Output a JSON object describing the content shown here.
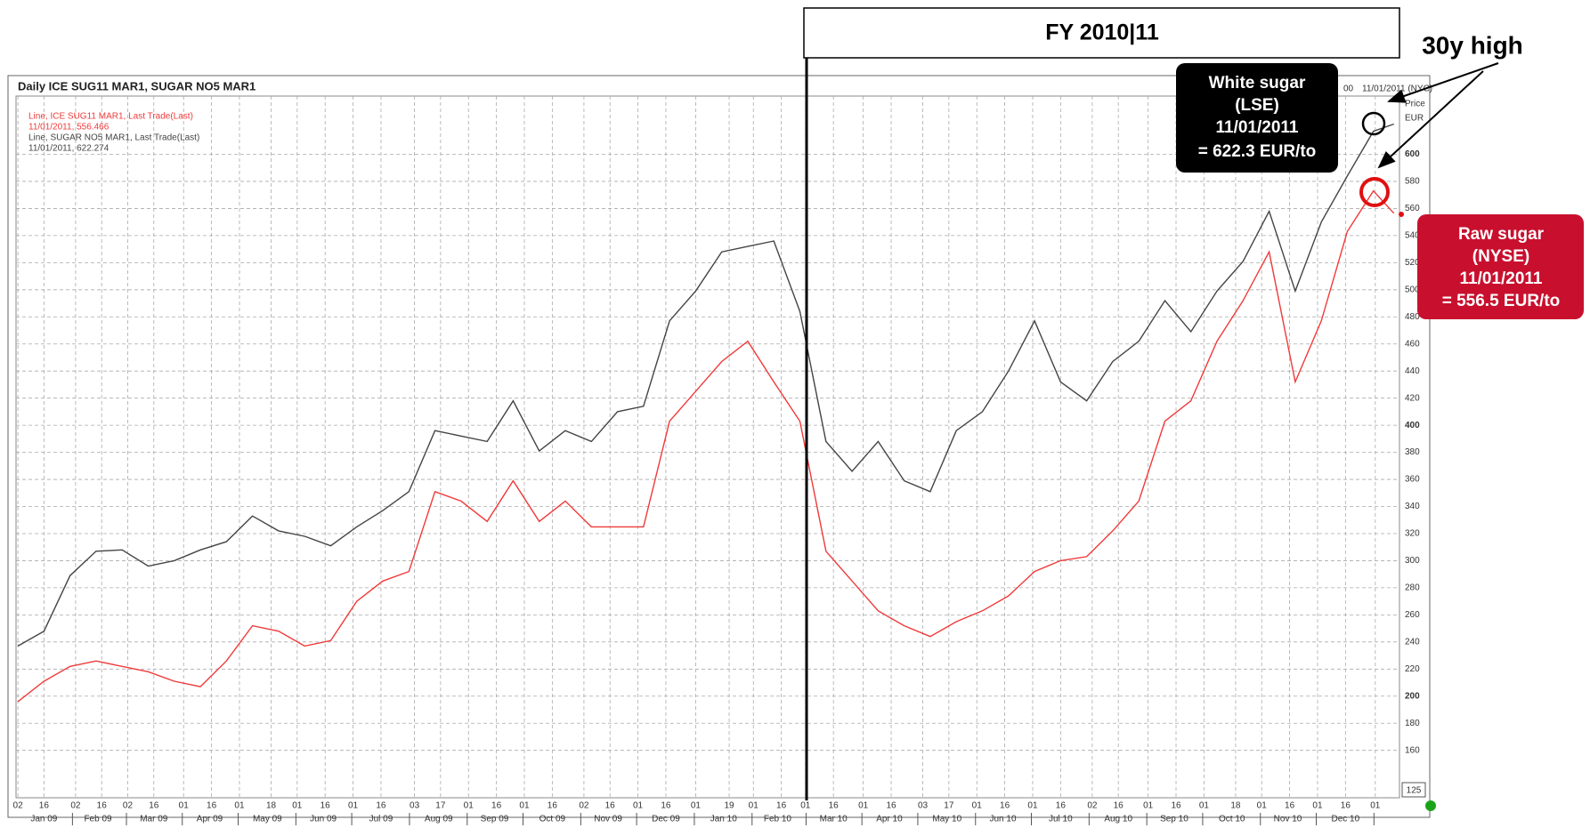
{
  "chart_data": {
    "type": "line",
    "title": "Daily ICE SUG11 MAR1, SUGAR NO5 MAR1",
    "corner_labels": [
      "00",
      "11/01/2011 (NYC)",
      "Price",
      "EUR"
    ],
    "current_label": "125",
    "fy_label": "FY 2010|11",
    "high_label": "30y high",
    "white_callout": [
      "White sugar",
      "(LSE)",
      "11/01/2011",
      "= 622.3 EUR/to"
    ],
    "raw_callout": [
      "Raw sugar",
      "(NYSE)",
      "11/01/2011",
      "= 556.5 EUR/to"
    ],
    "x": [
      "2009-01-02",
      "2009-01-16",
      "2009-01-30",
      "2009-02-13",
      "2009-02-27",
      "2009-03-13",
      "2009-03-27",
      "2009-04-10",
      "2009-04-24",
      "2009-05-08",
      "2009-05-22",
      "2009-06-05",
      "2009-06-19",
      "2009-07-03",
      "2009-07-17",
      "2009-07-31",
      "2009-08-14",
      "2009-08-28",
      "2009-09-11",
      "2009-09-25",
      "2009-10-09",
      "2009-10-23",
      "2009-11-06",
      "2009-11-20",
      "2009-12-04",
      "2009-12-18",
      "2010-01-01",
      "2010-01-15",
      "2010-01-29",
      "2010-02-12",
      "2010-02-26",
      "2010-03-12",
      "2010-03-26",
      "2010-04-09",
      "2010-04-23",
      "2010-05-07",
      "2010-05-21",
      "2010-06-04",
      "2010-06-18",
      "2010-07-02",
      "2010-07-16",
      "2010-07-30",
      "2010-08-13",
      "2010-08-27",
      "2010-09-10",
      "2010-09-24",
      "2010-10-08",
      "2010-10-22",
      "2010-11-05",
      "2010-11-19",
      "2010-12-03",
      "2010-12-17",
      "2010-12-31",
      "2011-01-11"
    ],
    "series": [
      {
        "name": "Line, ICE SUG11 MAR1, Last Trade(Last)",
        "last_label": "11/01/2011, 556.466",
        "color": "#f03a3a",
        "values": [
          196,
          211,
          222,
          226,
          222,
          218,
          211,
          207,
          226,
          252,
          248,
          237,
          241,
          270,
          285,
          292,
          351,
          344,
          329,
          359,
          329,
          344,
          325,
          325,
          325,
          403,
          425,
          447,
          462,
          432,
          403,
          307,
          285,
          263,
          252,
          244,
          255,
          263,
          274,
          292,
          300,
          303,
          322,
          344,
          403,
          418,
          462,
          492,
          528,
          432,
          477,
          543,
          573,
          556.5
        ]
      },
      {
        "name": "Line, SUGAR NO5 MAR1, Last Trade(Last)",
        "last_label": "11/01/2011, 622.274",
        "color": "#444444",
        "values": [
          237,
          248,
          289,
          307,
          308,
          296,
          300,
          308,
          314,
          333,
          322,
          318,
          311,
          325,
          337,
          351,
          396,
          392,
          388,
          418,
          381,
          396,
          388,
          410,
          414,
          477,
          499,
          528,
          532,
          536,
          484,
          388,
          366,
          388,
          359,
          351,
          396,
          410,
          440,
          477,
          432,
          418,
          447,
          462,
          492,
          469,
          499,
          521,
          558,
          499,
          550,
          584,
          617,
          622.3
        ]
      }
    ],
    "xlim": [
      "2009-01-01",
      "2011-01-14"
    ],
    "xticks": [
      {
        "value": "2009-01-02",
        "label": "02"
      },
      {
        "value": "2009-01-16",
        "label": "16"
      },
      {
        "value": "2009-02-02",
        "label": "02"
      },
      {
        "value": "2009-02-16",
        "label": "16"
      },
      {
        "value": "2009-03-02",
        "label": "02"
      },
      {
        "value": "2009-03-16",
        "label": "16"
      },
      {
        "value": "2009-04-01",
        "label": "01"
      },
      {
        "value": "2009-04-16",
        "label": "16"
      },
      {
        "value": "2009-05-01",
        "label": "01"
      },
      {
        "value": "2009-05-18",
        "label": "18"
      },
      {
        "value": "2009-06-01",
        "label": "01"
      },
      {
        "value": "2009-06-16",
        "label": "16"
      },
      {
        "value": "2009-07-01",
        "label": "01"
      },
      {
        "value": "2009-07-16",
        "label": "16"
      },
      {
        "value": "2009-08-03",
        "label": "03"
      },
      {
        "value": "2009-08-17",
        "label": "17"
      },
      {
        "value": "2009-09-01",
        "label": "01"
      },
      {
        "value": "2009-09-16",
        "label": "16"
      },
      {
        "value": "2009-10-01",
        "label": "01"
      },
      {
        "value": "2009-10-16",
        "label": "16"
      },
      {
        "value": "2009-11-02",
        "label": "02"
      },
      {
        "value": "2009-11-16",
        "label": "16"
      },
      {
        "value": "2009-12-01",
        "label": "01"
      },
      {
        "value": "2009-12-16",
        "label": "16"
      },
      {
        "value": "2010-01-01",
        "label": "01"
      },
      {
        "value": "2010-01-19",
        "label": "19"
      },
      {
        "value": "2010-02-01",
        "label": "01"
      },
      {
        "value": "2010-02-16",
        "label": "16"
      },
      {
        "value": "2010-03-01",
        "label": "01"
      },
      {
        "value": "2010-03-16",
        "label": "16"
      },
      {
        "value": "2010-04-01",
        "label": "01"
      },
      {
        "value": "2010-04-16",
        "label": "16"
      },
      {
        "value": "2010-05-03",
        "label": "03"
      },
      {
        "value": "2010-05-17",
        "label": "17"
      },
      {
        "value": "2010-06-01",
        "label": "01"
      },
      {
        "value": "2010-06-16",
        "label": "16"
      },
      {
        "value": "2010-07-01",
        "label": "01"
      },
      {
        "value": "2010-07-16",
        "label": "16"
      },
      {
        "value": "2010-08-02",
        "label": "02"
      },
      {
        "value": "2010-08-16",
        "label": "16"
      },
      {
        "value": "2010-09-01",
        "label": "01"
      },
      {
        "value": "2010-09-16",
        "label": "16"
      },
      {
        "value": "2010-10-01",
        "label": "01"
      },
      {
        "value": "2010-10-18",
        "label": "18"
      },
      {
        "value": "2010-11-01",
        "label": "01"
      },
      {
        "value": "2010-11-16",
        "label": "16"
      },
      {
        "value": "2010-12-01",
        "label": "01"
      },
      {
        "value": "2010-12-16",
        "label": "16"
      },
      {
        "value": "2011-01-01",
        "label": "01"
      }
    ],
    "month_labels": [
      {
        "value": "2009-01-16",
        "label": "Jan 09"
      },
      {
        "value": "2009-02-14",
        "label": "Feb 09"
      },
      {
        "value": "2009-03-16",
        "label": "Mar 09"
      },
      {
        "value": "2009-04-15",
        "label": "Apr 09"
      },
      {
        "value": "2009-05-16",
        "label": "May 09"
      },
      {
        "value": "2009-06-15",
        "label": "Jun 09"
      },
      {
        "value": "2009-07-16",
        "label": "Jul 09"
      },
      {
        "value": "2009-08-16",
        "label": "Aug 09"
      },
      {
        "value": "2009-09-15",
        "label": "Sep 09"
      },
      {
        "value": "2009-10-16",
        "label": "Oct 09"
      },
      {
        "value": "2009-11-15",
        "label": "Nov 09"
      },
      {
        "value": "2009-12-16",
        "label": "Dec 09"
      },
      {
        "value": "2010-01-16",
        "label": "Jan 10"
      },
      {
        "value": "2010-02-14",
        "label": "Feb 10"
      },
      {
        "value": "2010-03-16",
        "label": "Mar 10"
      },
      {
        "value": "2010-04-15",
        "label": "Apr 10"
      },
      {
        "value": "2010-05-16",
        "label": "May 10"
      },
      {
        "value": "2010-06-15",
        "label": "Jun 10"
      },
      {
        "value": "2010-07-16",
        "label": "Jul 10"
      },
      {
        "value": "2010-08-16",
        "label": "Aug 10"
      },
      {
        "value": "2010-09-15",
        "label": "Sep 10"
      },
      {
        "value": "2010-10-16",
        "label": "Oct 10"
      },
      {
        "value": "2010-11-15",
        "label": "Nov 10"
      },
      {
        "value": "2010-12-16",
        "label": "Dec 10"
      }
    ],
    "ylim": [
      125,
      643
    ],
    "yticks": [
      160,
      180,
      200,
      220,
      240,
      260,
      280,
      300,
      320,
      340,
      360,
      380,
      400,
      420,
      440,
      460,
      480,
      500,
      520,
      540,
      560,
      580,
      600
    ],
    "grid": true
  }
}
